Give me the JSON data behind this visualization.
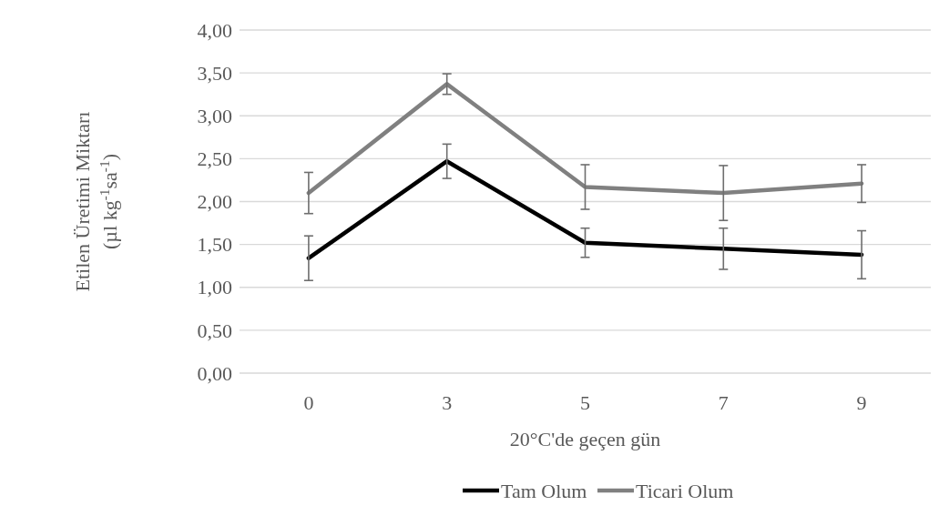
{
  "chart_data": {
    "type": "line",
    "xlabel": "20°C'de geçen gün",
    "ylabel": "Etilen Üretimi Miktarı\n(µl kg$^{-1}$sa$^{-1}$)",
    "categories": [
      "0",
      "3",
      "5",
      "7",
      "9"
    ],
    "series": [
      {
        "name": "Tam Olum",
        "color": "#000000",
        "values": [
          1.34,
          2.47,
          1.52,
          1.45,
          1.38
        ],
        "errors": [
          0.26,
          0.2,
          0.17,
          0.24,
          0.28
        ]
      },
      {
        "name": "Ticari Olum",
        "color": "#808080",
        "values": [
          2.1,
          3.37,
          2.17,
          2.1,
          2.21
        ],
        "errors": [
          0.24,
          0.12,
          0.26,
          0.32,
          0.22
        ]
      }
    ],
    "ylim": [
      0,
      4
    ],
    "yticks": [
      {
        "value": 0,
        "label": "0,00"
      },
      {
        "value": 0.5,
        "label": "0,50"
      },
      {
        "value": 1,
        "label": "1,00"
      },
      {
        "value": 1.5,
        "label": "1,50"
      },
      {
        "value": 2,
        "label": "2,00"
      },
      {
        "value": 2.5,
        "label": "2,50"
      },
      {
        "value": 3,
        "label": "3,00"
      },
      {
        "value": 3.5,
        "label": "3,50"
      },
      {
        "value": 4,
        "label": "4,00"
      }
    ],
    "grid": "y",
    "legend": "bottom",
    "marker": "none",
    "line_style": "solid"
  }
}
